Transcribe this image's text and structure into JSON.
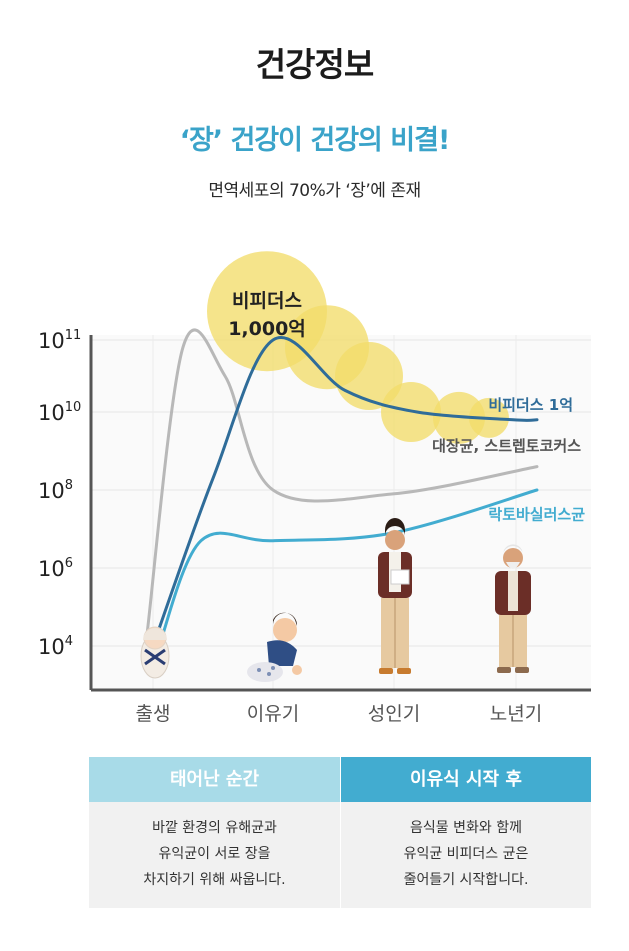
{
  "page": {
    "title": "건강정보",
    "headline": "‘장’ 건강이 건강의 비결!",
    "subtitle": "면역세포의 70%가 ‘장’에 존재"
  },
  "chart_data": {
    "type": "line",
    "y_scale": "log10",
    "ylim": [
      3.0,
      11.3
    ],
    "y_ticks": [
      {
        "base": "10",
        "exp": "11",
        "value": 11
      },
      {
        "base": "10",
        "exp": "10",
        "value": 10
      },
      {
        "base": "10",
        "exp": "8",
        "value": 8
      },
      {
        "base": "10",
        "exp": "6",
        "value": 6
      },
      {
        "base": "10",
        "exp": "4",
        "value": 4
      }
    ],
    "x_ticks": [
      "출생",
      "이유기",
      "성인기",
      "노년기"
    ],
    "grid": true,
    "series": [
      {
        "name": "비피더스 1억",
        "color": "#2f6c99",
        "points": [
          [
            0.0,
            4.0
          ],
          [
            0.5,
            8.3
          ],
          [
            1.0,
            11.0
          ],
          [
            1.6,
            10.3
          ],
          [
            2.2,
            10.0
          ],
          [
            3.0,
            9.8
          ],
          [
            3.2,
            9.8
          ]
        ]
      },
      {
        "name": "대장균, 스트렙토코커스",
        "color": "#b8b8b8",
        "points": [
          [
            -0.05,
            4.3
          ],
          [
            0.25,
            10.9
          ],
          [
            0.6,
            10.5
          ],
          [
            1.0,
            8.0
          ],
          [
            2.0,
            7.9
          ],
          [
            3.2,
            8.6
          ]
        ]
      },
      {
        "name": "락토바실러스균",
        "color": "#42acd0",
        "points": [
          [
            0.05,
            4.0
          ],
          [
            0.4,
            6.7
          ],
          [
            1.0,
            6.7
          ],
          [
            2.0,
            6.9
          ],
          [
            3.2,
            8.0
          ]
        ]
      }
    ],
    "bubbles": [
      {
        "x": 0.95,
        "y": 11.4,
        "r": 3.0
      },
      {
        "x": 1.45,
        "y": 10.9,
        "r": 2.1
      },
      {
        "x": 1.8,
        "y": 10.5,
        "r": 1.7
      },
      {
        "x": 2.15,
        "y": 10.0,
        "r": 1.5
      },
      {
        "x": 2.55,
        "y": 9.85,
        "r": 1.3
      },
      {
        "x": 2.8,
        "y": 9.85,
        "r": 1.0
      }
    ],
    "bubble_label": [
      "비피더스",
      "1,000억"
    ],
    "bubble_color": "#f2dc6a"
  },
  "table": {
    "left": {
      "header": "태어난 순간",
      "lines": [
        "바깥 환경의 유해균과",
        "유익균이 서로 장을",
        "차지하기 위해 싸웁니다."
      ]
    },
    "right": {
      "header": "이유식 시작 후",
      "lines": [
        "음식물 변화와 함께",
        "유익균 비피더스 균은",
        "줄어들기 시작합니다."
      ]
    }
  }
}
